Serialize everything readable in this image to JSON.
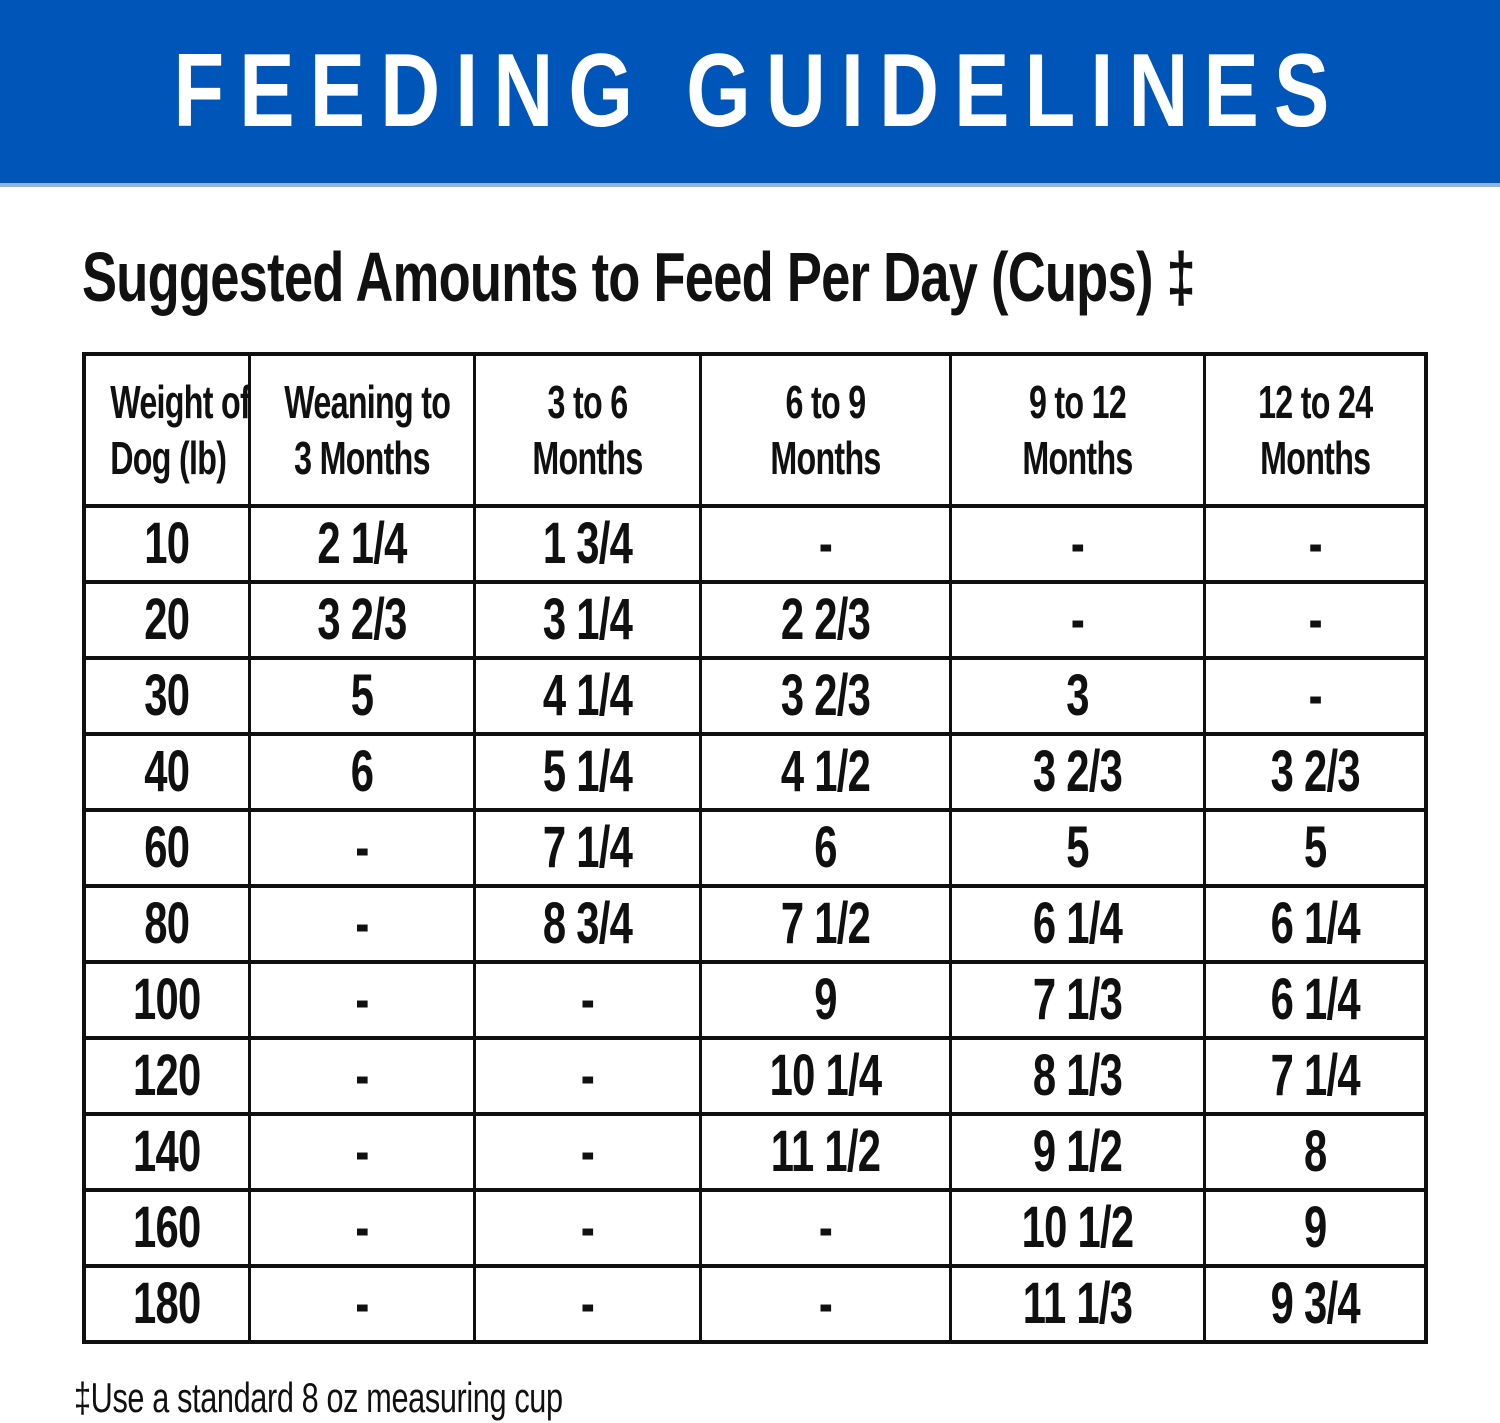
{
  "banner": {
    "title": "FEEDING GUIDELINES",
    "bg_color": "#0055b8",
    "text_color": "#ffffff"
  },
  "chart_data": {
    "type": "table",
    "title": "Suggested Amounts to Feed Per Day (Cups) ‡",
    "columns": [
      {
        "line1": "Weight of",
        "line2": "Dog (lb)"
      },
      {
        "line1": "Weaning to",
        "line2": "3 Months"
      },
      {
        "line1": "3 to 6",
        "line2": "Months"
      },
      {
        "line1": "6 to 9",
        "line2": "Months"
      },
      {
        "line1": "9 to 12",
        "line2": "Months"
      },
      {
        "line1": "12 to 24",
        "line2": "Months"
      }
    ],
    "rows": [
      [
        "10",
        "2 1/4",
        "1 3/4",
        "-",
        "-",
        "-"
      ],
      [
        "20",
        "3 2/3",
        "3 1/4",
        "2 2/3",
        "-",
        "-"
      ],
      [
        "30",
        "5",
        "4 1/4",
        "3 2/3",
        "3",
        "-"
      ],
      [
        "40",
        "6",
        "5 1/4",
        "4 1/2",
        "3 2/3",
        "3 2/3"
      ],
      [
        "60",
        "-",
        "7 1/4",
        "6",
        "5",
        "5"
      ],
      [
        "80",
        "-",
        "8 3/4",
        "7 1/2",
        "6 1/4",
        "6 1/4"
      ],
      [
        "100",
        "-",
        "-",
        "9",
        "7 1/3",
        "6 1/4"
      ],
      [
        "120",
        "-",
        "-",
        "10 1/4",
        "8 1/3",
        "7 1/4"
      ],
      [
        "140",
        "-",
        "-",
        "11 1/2",
        "9 1/2",
        "8"
      ],
      [
        "160",
        "-",
        "-",
        "-",
        "10 1/2",
        "9"
      ],
      [
        "180",
        "-",
        "-",
        "-",
        "11 1/3",
        "9 3/4"
      ]
    ],
    "footnote": "‡Use a standard 8 oz measuring cup"
  }
}
